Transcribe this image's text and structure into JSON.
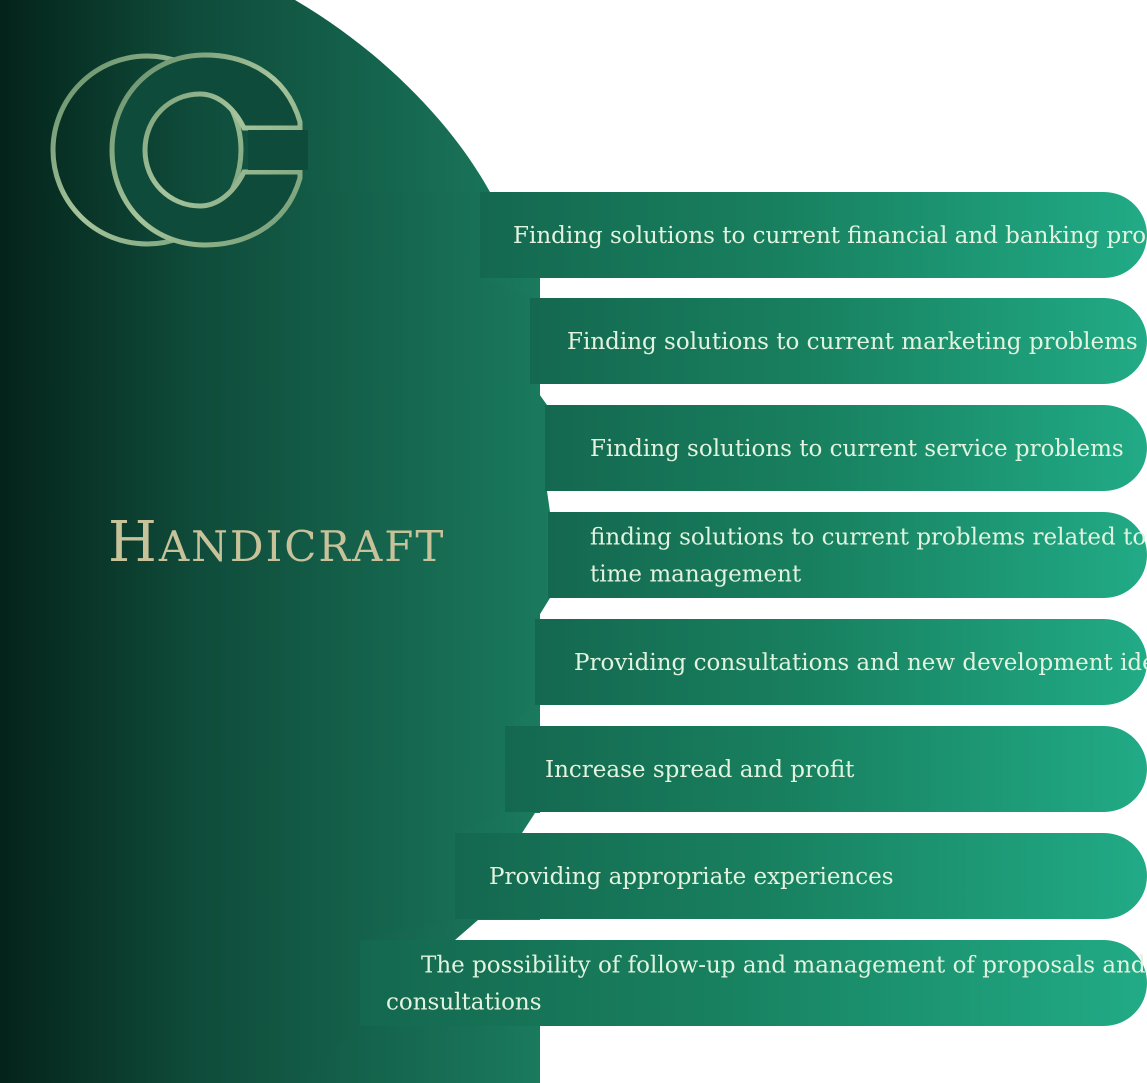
{
  "brand": {
    "title": "Handicraft",
    "logo_icon": "double-c-ring-logo-icon"
  },
  "colors": {
    "panel_dark": "#04231a",
    "panel_mid": "#0f4b3a",
    "panel_light": "#1f8c6c",
    "tab_light": "#1fa985",
    "title_gold": "#c8c29a",
    "logo_green": "#7fa57b",
    "item_text": "#e2f3df"
  },
  "items": [
    {
      "lines": [
        "Finding solutions to current financial and banking problems"
      ]
    },
    {
      "lines": [
        "Finding solutions to current marketing problems"
      ]
    },
    {
      "lines": [
        "Finding solutions to current service problems"
      ]
    },
    {
      "lines": [
        "finding solutions to current problems related to",
        "time management"
      ]
    },
    {
      "lines": [
        "Providing consultations and new development ideas"
      ]
    },
    {
      "lines": [
        "Increase spread and profit"
      ]
    },
    {
      "lines": [
        "Providing appropriate experiences"
      ]
    },
    {
      "lines": [
        "The possibility of follow-up and management of proposals and",
        "consultations"
      ]
    }
  ]
}
